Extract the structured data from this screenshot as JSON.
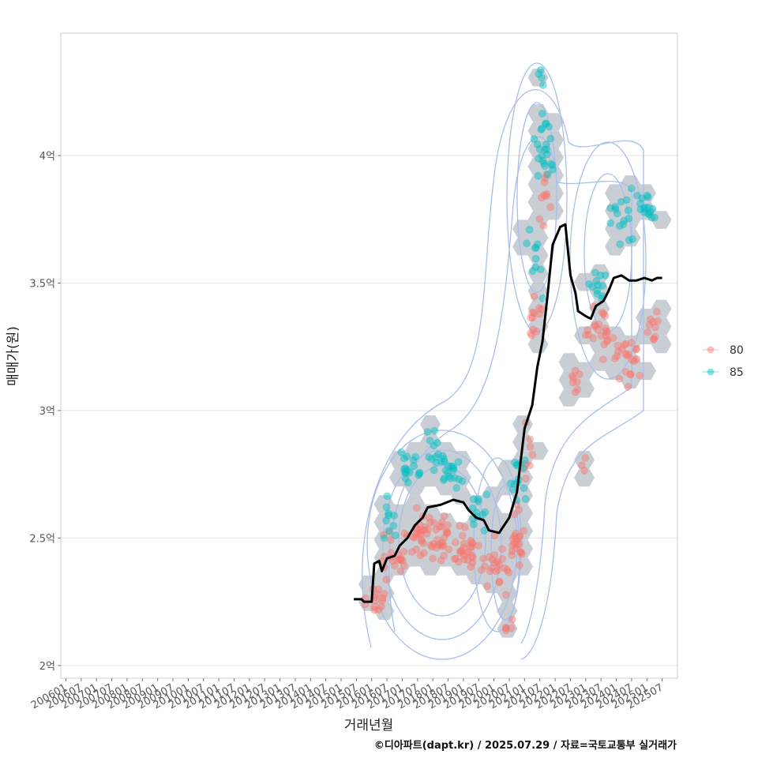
{
  "chart_data": {
    "type": "scatter",
    "title": "",
    "xlabel": "거래년월",
    "ylabel": "매매가(원)",
    "caption": "©디아파트(dapt.kr) / 2025.07.29 / 자료=국토교통부 실거래가",
    "y_unit": "억",
    "ylim": [
      1.95,
      4.48
    ],
    "y_ticks": [
      {
        "value": 2.0,
        "label": "2억"
      },
      {
        "value": 2.5,
        "label": "2.5억"
      },
      {
        "value": 3.0,
        "label": "3억"
      },
      {
        "value": 3.5,
        "label": "3.5억"
      },
      {
        "value": 4.0,
        "label": "4억"
      }
    ],
    "x_range": [
      "2005-11",
      "2026-01"
    ],
    "x_ticks": [
      "200601",
      "200607",
      "200701",
      "200707",
      "200801",
      "200807",
      "200901",
      "200907",
      "201001",
      "201007",
      "201101",
      "201107",
      "201201",
      "201207",
      "201301",
      "201307",
      "201401",
      "201407",
      "201501",
      "201507",
      "201601",
      "201607",
      "201701",
      "201707",
      "201801",
      "201807",
      "201901",
      "201907",
      "202001",
      "202007",
      "202101",
      "202107",
      "202201",
      "202207",
      "202301",
      "202307",
      "202401",
      "202407",
      "202501",
      "202507"
    ],
    "grid": true,
    "legend_position": "right",
    "legend": [
      {
        "name": "80",
        "color": "#F8766D"
      },
      {
        "name": "85",
        "color": "#00BFC4"
      }
    ],
    "series": [
      {
        "name": "80",
        "color": "#F8766D",
        "clusters": [
          {
            "x": "2016-03",
            "y": 2.25,
            "spread_x": 0.4,
            "spread_y": 0.07,
            "n": 14
          },
          {
            "x": "2016-09",
            "y": 2.42,
            "spread_x": 0.5,
            "spread_y": 0.09,
            "n": 18
          },
          {
            "x": "2017-06",
            "y": 2.5,
            "spread_x": 0.6,
            "spread_y": 0.1,
            "n": 26
          },
          {
            "x": "2018-04",
            "y": 2.52,
            "spread_x": 0.6,
            "spread_y": 0.09,
            "n": 30
          },
          {
            "x": "2019-03",
            "y": 2.45,
            "spread_x": 0.5,
            "spread_y": 0.1,
            "n": 26
          },
          {
            "x": "2020-02",
            "y": 2.38,
            "spread_x": 0.5,
            "spread_y": 0.1,
            "n": 22
          },
          {
            "x": "2020-07",
            "y": 2.15,
            "spread_x": 0.2,
            "spread_y": 0.03,
            "n": 5
          },
          {
            "x": "2020-10",
            "y": 2.5,
            "spread_x": 0.3,
            "spread_y": 0.12,
            "n": 22
          },
          {
            "x": "2021-02",
            "y": 2.85,
            "spread_x": 0.2,
            "spread_y": 0.15,
            "n": 8
          },
          {
            "x": "2021-05",
            "y": 3.35,
            "spread_x": 0.3,
            "spread_y": 0.08,
            "n": 12
          },
          {
            "x": "2021-09",
            "y": 3.82,
            "spread_x": 0.3,
            "spread_y": 0.12,
            "n": 10
          },
          {
            "x": "2022-09",
            "y": 3.1,
            "spread_x": 0.3,
            "spread_y": 0.08,
            "n": 8
          },
          {
            "x": "2022-11",
            "y": 2.78,
            "spread_x": 0.2,
            "spread_y": 0.03,
            "n": 3
          },
          {
            "x": "2023-06",
            "y": 3.3,
            "spread_x": 0.5,
            "spread_y": 0.12,
            "n": 22
          },
          {
            "x": "2024-05",
            "y": 3.2,
            "spread_x": 0.5,
            "spread_y": 0.12,
            "n": 22
          },
          {
            "x": "2025-03",
            "y": 3.35,
            "spread_x": 0.3,
            "spread_y": 0.08,
            "n": 10
          }
        ]
      },
      {
        "name": "85",
        "color": "#00BFC4",
        "clusters": [
          {
            "x": "2016-08",
            "y": 2.58,
            "spread_x": 0.3,
            "spread_y": 0.1,
            "n": 10
          },
          {
            "x": "2017-03",
            "y": 2.78,
            "spread_x": 0.4,
            "spread_y": 0.08,
            "n": 16
          },
          {
            "x": "2018-01",
            "y": 2.83,
            "spread_x": 0.5,
            "spread_y": 0.08,
            "n": 18
          },
          {
            "x": "2018-09",
            "y": 2.75,
            "spread_x": 0.4,
            "spread_y": 0.07,
            "n": 14
          },
          {
            "x": "2019-09",
            "y": 2.6,
            "spread_x": 0.4,
            "spread_y": 0.07,
            "n": 12
          },
          {
            "x": "2020-10",
            "y": 2.75,
            "spread_x": 0.3,
            "spread_y": 0.1,
            "n": 14
          },
          {
            "x": "2021-05",
            "y": 3.6,
            "spread_x": 0.3,
            "spread_y": 0.15,
            "n": 10
          },
          {
            "x": "2021-09",
            "y": 4.05,
            "spread_x": 0.35,
            "spread_y": 0.15,
            "n": 24
          },
          {
            "x": "2021-07",
            "y": 4.32,
            "spread_x": 0.15,
            "spread_y": 0.04,
            "n": 4
          },
          {
            "x": "2023-05",
            "y": 3.5,
            "spread_x": 0.4,
            "spread_y": 0.08,
            "n": 12
          },
          {
            "x": "2024-03",
            "y": 3.75,
            "spread_x": 0.5,
            "spread_y": 0.1,
            "n": 16
          },
          {
            "x": "2025-01",
            "y": 3.8,
            "spread_x": 0.4,
            "spread_y": 0.07,
            "n": 16
          }
        ]
      }
    ],
    "trend_line": {
      "color": "#000000",
      "points": [
        {
          "x": "2015-06",
          "y": 2.26
        },
        {
          "x": "2015-09",
          "y": 2.26
        },
        {
          "x": "2015-10",
          "y": 2.25
        },
        {
          "x": "2016-01",
          "y": 2.25
        },
        {
          "x": "2016-02",
          "y": 2.4
        },
        {
          "x": "2016-04",
          "y": 2.41
        },
        {
          "x": "2016-05",
          "y": 2.37
        },
        {
          "x": "2016-07",
          "y": 2.42
        },
        {
          "x": "2016-10",
          "y": 2.43
        },
        {
          "x": "2016-12",
          "y": 2.47
        },
        {
          "x": "2017-03",
          "y": 2.5
        },
        {
          "x": "2017-06",
          "y": 2.55
        },
        {
          "x": "2017-09",
          "y": 2.58
        },
        {
          "x": "2017-11",
          "y": 2.62
        },
        {
          "x": "2018-04",
          "y": 2.63
        },
        {
          "x": "2018-09",
          "y": 2.65
        },
        {
          "x": "2019-01",
          "y": 2.64
        },
        {
          "x": "2019-03",
          "y": 2.61
        },
        {
          "x": "2019-06",
          "y": 2.58
        },
        {
          "x": "2019-09",
          "y": 2.57
        },
        {
          "x": "2019-11",
          "y": 2.53
        },
        {
          "x": "2020-03",
          "y": 2.52
        },
        {
          "x": "2020-07",
          "y": 2.58
        },
        {
          "x": "2020-10",
          "y": 2.68
        },
        {
          "x": "2021-01",
          "y": 2.93
        },
        {
          "x": "2021-04",
          "y": 3.02
        },
        {
          "x": "2021-06",
          "y": 3.17
        },
        {
          "x": "2021-08",
          "y": 3.27
        },
        {
          "x": "2021-10",
          "y": 3.45
        },
        {
          "x": "2021-12",
          "y": 3.65
        },
        {
          "x": "2022-03",
          "y": 3.72
        },
        {
          "x": "2022-05",
          "y": 3.73
        },
        {
          "x": "2022-07",
          "y": 3.53
        },
        {
          "x": "2022-09",
          "y": 3.46
        },
        {
          "x": "2022-10",
          "y": 3.39
        },
        {
          "x": "2023-01",
          "y": 3.37
        },
        {
          "x": "2023-03",
          "y": 3.36
        },
        {
          "x": "2023-05",
          "y": 3.41
        },
        {
          "x": "2023-08",
          "y": 3.43
        },
        {
          "x": "2023-10",
          "y": 3.47
        },
        {
          "x": "2023-12",
          "y": 3.52
        },
        {
          "x": "2024-03",
          "y": 3.53
        },
        {
          "x": "2024-06",
          "y": 3.51
        },
        {
          "x": "2024-09",
          "y": 3.51
        },
        {
          "x": "2024-12",
          "y": 3.52
        },
        {
          "x": "2025-03",
          "y": 3.51
        },
        {
          "x": "2025-05",
          "y": 3.52
        },
        {
          "x": "2025-07",
          "y": 3.52
        }
      ]
    },
    "density_contours": {
      "color": "#A9BEEA",
      "present": true
    },
    "hexbin": {
      "color": "#B7BEC6",
      "present": true
    }
  }
}
